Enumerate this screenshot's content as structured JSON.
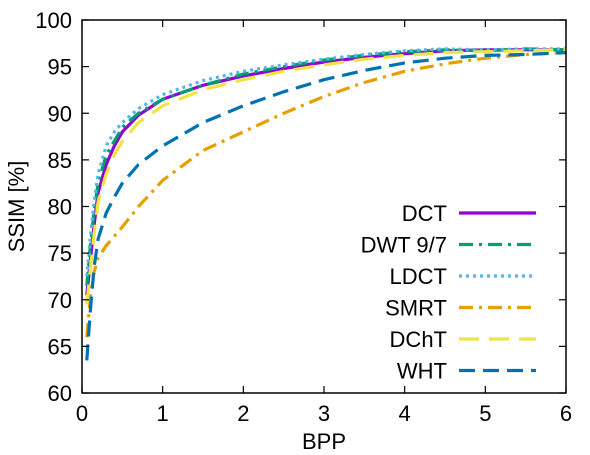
{
  "chart_data": {
    "type": "line",
    "xlabel": "BPP",
    "ylabel": "SSIM [%]",
    "xlim": [
      0,
      6
    ],
    "ylim": [
      60,
      100
    ],
    "xticks": [
      "0",
      "1",
      "2",
      "3",
      "4",
      "5",
      "6"
    ],
    "yticks": [
      "60",
      "65",
      "70",
      "75",
      "80",
      "85",
      "90",
      "95",
      "100"
    ],
    "legend_position": "bottom-right",
    "grid": false,
    "series": [
      {
        "name": "DCT",
        "color": "#9400d3",
        "dash": "solid",
        "x": [
          0.06,
          0.1,
          0.15,
          0.2,
          0.3,
          0.4,
          0.5,
          0.7,
          1.0,
          1.5,
          2.0,
          2.5,
          3.0,
          3.5,
          4.0,
          4.5,
          5.0,
          5.5,
          6.0
        ],
        "y": [
          70.5,
          74,
          78,
          81.5,
          84.5,
          86.5,
          88,
          89.8,
          91.5,
          93,
          94,
          94.8,
          95.5,
          96,
          96.4,
          96.7,
          96.8,
          96.8,
          96.8
        ]
      },
      {
        "name": "DWT 9/7",
        "color": "#009e73",
        "dash": "dashdot",
        "x": [
          0.06,
          0.1,
          0.15,
          0.2,
          0.3,
          0.4,
          0.5,
          0.7,
          1.0,
          1.5,
          2.0,
          2.5,
          3.0,
          3.5,
          4.0,
          4.5,
          5.0,
          5.5,
          6.0
        ],
        "y": [
          71.5,
          75.5,
          79.5,
          82.5,
          85.5,
          87,
          88.5,
          90,
          91.5,
          93,
          94.2,
          95,
          95.7,
          96.2,
          96.6,
          96.8,
          96.7,
          96.9,
          96.8
        ]
      },
      {
        "name": "LDCT",
        "color": "#56b4e9",
        "dash": "dotted",
        "x": [
          0.06,
          0.1,
          0.15,
          0.2,
          0.3,
          0.4,
          0.5,
          0.7,
          1.0,
          1.5,
          2.0,
          2.5,
          3.0,
          3.5,
          4.0,
          4.5,
          5.0,
          5.5,
          6.0
        ],
        "y": [
          72.5,
          76.5,
          80.5,
          83.5,
          86.5,
          88,
          89,
          90.5,
          92,
          93.5,
          94.5,
          95.2,
          95.8,
          96.3,
          96.7,
          96.9,
          96.8,
          96.9,
          96.9
        ]
      },
      {
        "name": "SMRT",
        "color": "#e69f00",
        "dash": "dashdot",
        "x": [
          0.06,
          0.1,
          0.15,
          0.2,
          0.3,
          0.4,
          0.5,
          0.7,
          1.0,
          1.5,
          2.0,
          2.5,
          3.0,
          3.5,
          4.0,
          4.5,
          5.0,
          5.5,
          6.0
        ],
        "y": [
          66,
          70,
          73,
          74.5,
          75.8,
          76.8,
          77.8,
          80,
          82.8,
          86,
          88,
          90,
          91.8,
          93.3,
          94.5,
          95.3,
          95.9,
          96.3,
          96.5
        ]
      },
      {
        "name": "DChT",
        "color": "#f0e442",
        "dash": "longdash",
        "x": [
          0.06,
          0.1,
          0.15,
          0.2,
          0.3,
          0.4,
          0.5,
          0.7,
          1.0,
          1.5,
          2.0,
          2.5,
          3.0,
          3.5,
          4.0,
          4.5,
          5.0,
          5.5,
          6.0
        ],
        "y": [
          69.5,
          73,
          77,
          80.5,
          83.5,
          85.5,
          87,
          89,
          90.8,
          92.5,
          93.6,
          94.5,
          95.2,
          95.8,
          96.2,
          96.5,
          96.6,
          96.7,
          96.8
        ]
      },
      {
        "name": "WHT",
        "color": "#0072b2",
        "dash": "dashed",
        "x": [
          0.06,
          0.1,
          0.15,
          0.2,
          0.3,
          0.4,
          0.5,
          0.7,
          1.0,
          1.5,
          2.0,
          2.5,
          3.0,
          3.5,
          4.0,
          4.5,
          5.0,
          5.5,
          6.0
        ],
        "y": [
          63.5,
          68.5,
          73.5,
          76.5,
          79.3,
          81,
          82.5,
          84.5,
          86.5,
          89,
          90.8,
          92.3,
          93.6,
          94.6,
          95.4,
          95.9,
          96.2,
          96.3,
          96.5
        ]
      }
    ]
  }
}
